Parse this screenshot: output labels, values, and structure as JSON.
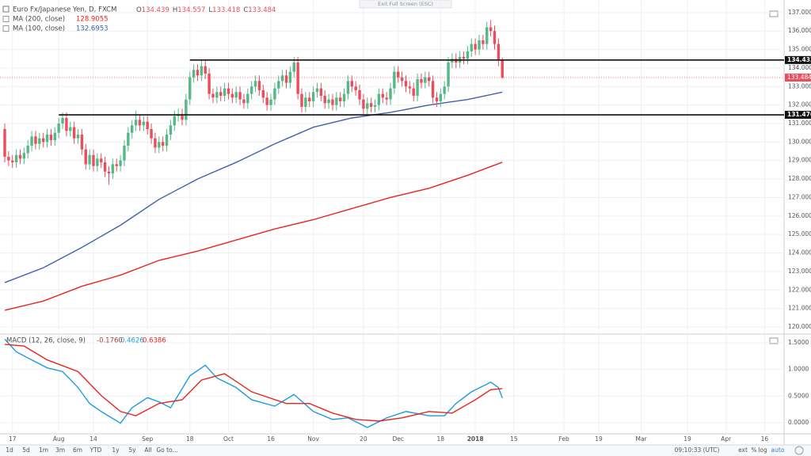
{
  "ui": {
    "exit_full_screen": "Exit Full Screen (ESC)",
    "ranges": [
      "1d",
      "5d",
      "1m",
      "3m",
      "6m",
      "YTD",
      "1y",
      "5y",
      "All",
      "Go to..."
    ],
    "time": "09:10:33 (UTC)",
    "options": [
      "ext",
      "%",
      "log",
      "auto"
    ]
  },
  "chart_data": [
    {
      "type": "candlestick",
      "title": "Euro Fx/Japanese Yen, D, FXCM",
      "ohlc_letters": [
        "O",
        "H",
        "L",
        "C"
      ],
      "open": [
        130.7,
        129.2,
        129.0,
        128.9,
        129.3,
        129.1,
        129.4,
        129.8,
        130.3,
        129.9,
        130.2,
        130.0,
        130.4,
        130.1,
        130.5,
        131.0,
        131.3,
        130.6,
        130.8,
        130.2,
        130.4,
        129.6,
        128.8,
        129.3,
        128.7,
        129.1,
        128.9,
        128.4,
        128.3,
        128.8,
        128.7,
        129.0,
        129.8,
        130.5,
        130.9,
        131.2,
        130.9,
        131.1,
        130.7,
        130.2,
        129.7,
        130.0,
        129.8,
        130.4,
        130.9,
        131.4,
        131.5,
        131.2,
        132.3,
        133.5,
        133.9,
        133.6,
        134.1,
        133.7,
        132.6,
        132.4,
        132.7,
        132.5,
        132.9,
        132.6,
        132.4,
        132.7,
        132.3,
        132.1,
        132.6,
        133.0,
        133.3,
        132.8,
        132.4,
        132.0,
        132.3,
        132.9,
        133.3,
        133.6,
        133.2,
        133.8,
        134.3,
        132.6,
        131.9,
        132.4,
        132.2,
        132.7,
        132.9,
        132.5,
        132.1,
        132.3,
        132.0,
        132.4,
        132.2,
        132.6,
        133.3,
        133.0,
        132.8,
        132.3,
        131.8,
        132.1,
        131.9,
        132.0,
        132.6,
        132.4,
        132.3,
        132.9,
        133.8,
        133.5,
        133.3,
        133.0,
        132.9,
        132.5,
        133.4,
        133.2,
        133.5,
        133.3,
        132.4,
        132.2,
        132.6,
        133.0,
        134.3,
        134.5,
        134.3,
        134.6,
        134.5,
        134.9,
        135.3,
        135.0,
        135.5,
        135.3,
        136.2,
        136.0,
        135.3,
        134.439
      ],
      "high": [
        131.0,
        129.5,
        129.3,
        129.6,
        129.6,
        129.7,
        130.1,
        130.6,
        130.6,
        130.5,
        130.5,
        130.7,
        130.7,
        130.8,
        131.3,
        131.6,
        131.6,
        131.1,
        131.1,
        130.7,
        130.7,
        129.9,
        129.6,
        129.6,
        129.4,
        129.4,
        129.2,
        128.7,
        129.1,
        129.1,
        129.3,
        130.1,
        130.8,
        131.2,
        131.7,
        131.5,
        131.4,
        131.4,
        131.0,
        130.5,
        130.3,
        130.3,
        130.7,
        131.2,
        131.7,
        131.8,
        131.8,
        132.6,
        133.8,
        134.2,
        134.2,
        134.4,
        134.4,
        134.0,
        132.9,
        133.0,
        133.0,
        133.2,
        133.2,
        132.9,
        133.0,
        133.0,
        132.6,
        132.9,
        133.3,
        133.6,
        133.6,
        133.1,
        132.7,
        132.6,
        133.2,
        133.6,
        133.9,
        133.9,
        134.1,
        134.6,
        134.6,
        132.9,
        132.7,
        132.7,
        133.0,
        133.2,
        133.2,
        132.8,
        132.6,
        132.6,
        132.7,
        132.7,
        132.9,
        133.6,
        133.6,
        133.3,
        133.1,
        132.6,
        132.4,
        132.4,
        132.3,
        132.9,
        132.9,
        132.7,
        133.2,
        134.1,
        134.1,
        133.8,
        133.6,
        133.3,
        133.2,
        133.7,
        133.7,
        133.8,
        133.8,
        133.6,
        132.7,
        132.9,
        133.3,
        134.6,
        134.8,
        134.8,
        134.9,
        134.9,
        135.2,
        135.6,
        135.6,
        135.8,
        135.8,
        136.5,
        136.6,
        136.3,
        135.6,
        134.557
      ],
      "low": [
        128.9,
        128.7,
        128.6,
        128.6,
        128.8,
        128.8,
        129.1,
        129.5,
        129.6,
        129.6,
        129.7,
        129.7,
        129.8,
        129.8,
        130.2,
        130.7,
        130.3,
        130.3,
        129.9,
        129.9,
        129.3,
        128.5,
        128.5,
        128.4,
        128.4,
        128.6,
        128.1,
        127.7,
        128.0,
        128.4,
        128.4,
        128.7,
        129.5,
        130.2,
        130.6,
        130.6,
        130.6,
        130.4,
        129.9,
        129.4,
        129.4,
        129.5,
        129.5,
        130.1,
        130.6,
        131.1,
        130.9,
        130.9,
        132.0,
        133.2,
        133.3,
        133.3,
        133.4,
        132.3,
        132.1,
        132.1,
        132.2,
        132.2,
        132.3,
        132.1,
        132.1,
        132.0,
        131.8,
        131.8,
        132.3,
        132.7,
        132.5,
        132.1,
        131.7,
        131.7,
        132.0,
        132.6,
        133.0,
        132.9,
        132.9,
        133.5,
        132.3,
        131.6,
        131.6,
        131.9,
        131.9,
        132.4,
        132.2,
        131.8,
        131.8,
        131.7,
        131.7,
        131.9,
        131.9,
        132.3,
        132.7,
        132.5,
        132.0,
        131.5,
        131.5,
        131.6,
        131.6,
        131.7,
        132.1,
        132.0,
        132.0,
        132.6,
        133.2,
        133.0,
        132.7,
        132.6,
        132.2,
        132.2,
        132.9,
        132.9,
        133.0,
        132.1,
        131.9,
        131.9,
        132.3,
        132.7,
        134.0,
        134.0,
        134.0,
        134.2,
        134.2,
        134.6,
        134.7,
        134.7,
        135.0,
        135.0,
        135.7,
        135.0,
        134.1,
        133.418
      ],
      "close": [
        129.2,
        129.0,
        128.9,
        129.3,
        129.1,
        129.4,
        129.8,
        130.3,
        129.9,
        130.2,
        130.0,
        130.4,
        130.1,
        130.5,
        131.0,
        131.3,
        130.6,
        130.8,
        130.2,
        130.4,
        129.6,
        128.8,
        129.3,
        128.7,
        129.1,
        128.9,
        128.4,
        128.3,
        128.8,
        128.7,
        129.0,
        129.8,
        130.5,
        130.9,
        131.2,
        130.9,
        131.1,
        130.7,
        130.2,
        129.7,
        130.0,
        129.8,
        130.4,
        130.9,
        131.4,
        131.5,
        131.2,
        132.3,
        133.5,
        133.9,
        133.6,
        134.1,
        133.7,
        132.6,
        132.4,
        132.7,
        132.5,
        132.9,
        132.6,
        132.4,
        132.7,
        132.3,
        132.1,
        132.6,
        133.0,
        133.3,
        132.8,
        132.4,
        132.0,
        132.3,
        132.9,
        133.3,
        133.6,
        133.2,
        133.8,
        134.3,
        132.6,
        131.9,
        132.4,
        132.2,
        132.7,
        132.9,
        132.5,
        132.1,
        132.3,
        132.0,
        132.4,
        132.2,
        132.6,
        133.3,
        133.0,
        132.8,
        132.3,
        131.8,
        132.1,
        131.9,
        132.0,
        132.6,
        132.4,
        132.3,
        132.9,
        133.8,
        133.5,
        133.3,
        133.0,
        132.9,
        132.5,
        133.4,
        133.2,
        133.5,
        133.3,
        132.4,
        132.2,
        132.6,
        133.0,
        134.3,
        134.5,
        134.3,
        134.6,
        134.5,
        134.9,
        135.3,
        135.0,
        135.5,
        135.3,
        136.2,
        136.0,
        135.3,
        134.4,
        133.484
      ],
      "up_color": "#53b987",
      "down_color": "#eb4d5c",
      "last_color": "#eb4d5c",
      "series": [
        {
          "name": "MA (200, close)",
          "color": "#e8251f",
          "x": [
            0,
            10,
            20,
            30,
            40,
            50,
            60,
            70,
            80,
            90,
            100,
            110,
            120,
            129
          ],
          "values": [
            120.9,
            121.4,
            122.2,
            122.8,
            123.6,
            124.1,
            124.7,
            125.3,
            125.8,
            126.4,
            127.0,
            127.5,
            128.2,
            128.9055
          ]
        },
        {
          "name": "MA (100, close)",
          "color": "#3f62ad",
          "x": [
            0,
            10,
            20,
            30,
            40,
            50,
            60,
            70,
            80,
            90,
            100,
            110,
            120,
            129
          ],
          "values": [
            122.4,
            123.2,
            124.3,
            125.5,
            126.9,
            128.0,
            128.9,
            129.9,
            130.8,
            131.3,
            131.6,
            132.0,
            132.3,
            132.6953
          ]
        }
      ],
      "hlines": [
        {
          "value": 134.432,
          "start": 48
        },
        {
          "value": 131.47,
          "label": "131.470",
          "start": 14
        }
      ],
      "xlim": [
        -1.23,
        202.05
      ],
      "ylim": [
        119.7,
        137.25
      ],
      "yticks": [
        {
          "value": 120,
          "label": "120.000"
        },
        {
          "value": 121,
          "label": "121.000"
        },
        {
          "value": 122,
          "label": "122.000"
        },
        {
          "value": 123,
          "label": "123.000"
        },
        {
          "value": 124,
          "label": "124.000"
        },
        {
          "value": 125,
          "label": "125.000"
        },
        {
          "value": 126,
          "label": "126.000"
        },
        {
          "value": 127,
          "label": "127.000"
        },
        {
          "value": 128,
          "label": "128.000"
        },
        {
          "value": 129,
          "label": "129.000"
        },
        {
          "value": 130,
          "label": "130.000"
        },
        {
          "value": 131,
          "label": "131.000"
        },
        {
          "value": 132,
          "label": "132.000"
        },
        {
          "value": 133,
          "label": "133.000"
        },
        {
          "value": 134,
          "label": "134.000"
        },
        {
          "value": 135,
          "label": "135.000"
        },
        {
          "value": 136,
          "label": "136.000"
        },
        {
          "value": 137,
          "label": "137.000"
        }
      ],
      "grid": true
    },
    {
      "type": "line",
      "title": "MACD (12, 26, close, 9)",
      "histogram_label": "-0.1760",
      "series": [
        {
          "color": "#1e9be0",
          "x": [
            0,
            3,
            7,
            11,
            15,
            19,
            22,
            25,
            30,
            33,
            37,
            40,
            43,
            48,
            52,
            55,
            60,
            64,
            70,
            75,
            80,
            85,
            89,
            94,
            99,
            104,
            110,
            114,
            117,
            121,
            126,
            128,
            129
          ],
          "values": [
            1.57,
            1.33,
            1.18,
            1.03,
            0.96,
            0.66,
            0.36,
            0.21,
            -0.01,
            0.28,
            0.47,
            0.39,
            0.28,
            0.88,
            1.08,
            0.84,
            0.66,
            0.43,
            0.31,
            0.53,
            0.21,
            0.06,
            0.09,
            -0.09,
            0.09,
            0.21,
            0.13,
            0.13,
            0.36,
            0.58,
            0.76,
            0.66,
            0.4626
          ]
        },
        {
          "color": "#e8251f",
          "x": [
            0,
            5,
            11,
            19,
            25,
            30,
            34,
            40,
            46,
            51,
            57,
            64,
            73,
            79,
            85,
            91,
            97,
            103,
            110,
            116,
            122,
            126,
            129
          ],
          "values": [
            1.47,
            1.44,
            1.18,
            0.96,
            0.51,
            0.21,
            0.13,
            0.36,
            0.43,
            0.8,
            0.92,
            0.58,
            0.36,
            0.36,
            0.18,
            0.06,
            0.03,
            0.09,
            0.21,
            0.18,
            0.43,
            0.62,
            0.6386
          ]
        }
      ],
      "xlim": [
        -1.23,
        202.05
      ],
      "ylim": [
        -0.21,
        1.62
      ],
      "yticks": [
        {
          "value": 0,
          "label": "0.0000"
        },
        {
          "value": 0.5,
          "label": "0.5000"
        },
        {
          "value": 1,
          "label": "1.0000"
        },
        {
          "value": 1.5,
          "label": "1.5000"
        }
      ],
      "xticks": [
        {
          "value": 2,
          "label": "17"
        },
        {
          "value": 14,
          "label": "Aug"
        },
        {
          "value": 23,
          "label": "14"
        },
        {
          "value": 37,
          "label": "Sep"
        },
        {
          "value": 48,
          "label": "18"
        },
        {
          "value": 58,
          "label": "Oct"
        },
        {
          "value": 69,
          "label": "16"
        },
        {
          "value": 80,
          "label": "Nov"
        },
        {
          "value": 93,
          "label": "20"
        },
        {
          "value": 102,
          "label": "Dec"
        },
        {
          "value": 113,
          "label": "18"
        },
        {
          "value": 122,
          "label": "2018"
        },
        {
          "value": 132,
          "label": "15"
        },
        {
          "value": 145,
          "label": "Feb"
        },
        {
          "value": 154,
          "label": "19"
        },
        {
          "value": 165,
          "label": "Mar"
        },
        {
          "value": 177,
          "label": "19"
        },
        {
          "value": 187,
          "label": "Apr"
        },
        {
          "value": 197,
          "label": "16"
        }
      ],
      "grid": true
    }
  ]
}
